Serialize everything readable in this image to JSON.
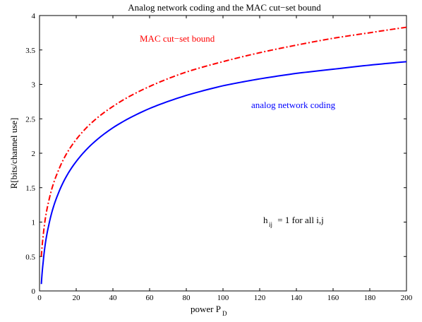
{
  "chart_data": {
    "type": "line",
    "title": "Analog network coding and the MAC cut−set bound",
    "xlabel": {
      "main": "power P",
      "sub": "D"
    },
    "ylabel": "R[bits/channel use]",
    "xlim": [
      0,
      200
    ],
    "ylim": [
      0,
      4
    ],
    "xticks": [
      0,
      20,
      40,
      60,
      80,
      100,
      120,
      140,
      160,
      180,
      200
    ],
    "yticks": [
      0,
      0.5,
      1,
      1.5,
      2,
      2.5,
      3,
      3.5,
      4
    ],
    "grid": false,
    "legend": "none",
    "series": [
      {
        "name": "MAC cut−set bound",
        "color": "#ff0000",
        "style": "dash-dot",
        "x": [
          1,
          2,
          5,
          10,
          20,
          40,
          60,
          80,
          100,
          120,
          140,
          160,
          180,
          200
        ],
        "y": [
          0.5,
          0.8,
          1.3,
          1.73,
          2.2,
          2.68,
          2.97,
          3.18,
          3.33,
          3.46,
          3.57,
          3.67,
          3.75,
          3.83
        ]
      },
      {
        "name": "analog network coding",
        "color": "#0000ff",
        "style": "solid",
        "x": [
          1,
          2,
          5,
          10,
          20,
          40,
          60,
          80,
          100,
          120,
          140,
          160,
          180,
          200
        ],
        "y": [
          0.1,
          0.42,
          0.95,
          1.4,
          1.88,
          2.37,
          2.65,
          2.84,
          2.98,
          3.08,
          3.16,
          3.22,
          3.28,
          3.33
        ]
      }
    ],
    "annotations": {
      "mac_label": "MAC cut−set bound",
      "anc_label": "analog network coding",
      "note": {
        "main": "h",
        "sub": "ij",
        "rest": " = 1 for all i,j"
      }
    }
  }
}
